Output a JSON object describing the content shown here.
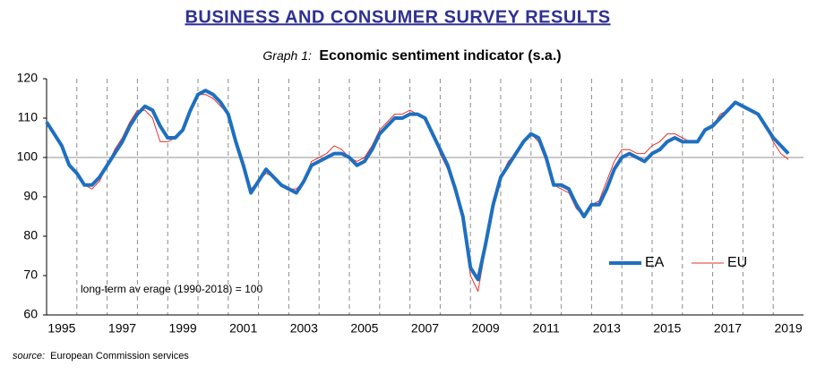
{
  "chart_data": {
    "type": "line",
    "header": "BUSINESS AND CONSUMER SURVEY RESULTS",
    "graph_label": "Graph 1:",
    "title": "Economic sentiment indicator (s.a.)",
    "annotation": "long-term av erage (1990-2018) = 100",
    "source_label": "source:",
    "source": "European Commission services",
    "x": [
      1995,
      1995.25,
      1995.5,
      1995.75,
      1996,
      1996.25,
      1996.5,
      1996.75,
      1997,
      1997.25,
      1997.5,
      1997.75,
      1998,
      1998.25,
      1998.5,
      1998.75,
      1999,
      1999.25,
      1999.5,
      1999.75,
      2000,
      2000.25,
      2000.5,
      2000.75,
      2001,
      2001.25,
      2001.5,
      2001.75,
      2002,
      2002.25,
      2002.5,
      2002.75,
      2003,
      2003.25,
      2003.5,
      2003.75,
      2004,
      2004.25,
      2004.5,
      2004.75,
      2005,
      2005.25,
      2005.5,
      2005.75,
      2006,
      2006.25,
      2006.5,
      2006.75,
      2007,
      2007.25,
      2007.5,
      2007.75,
      2008,
      2008.25,
      2008.5,
      2008.75,
      2009,
      2009.25,
      2009.5,
      2009.75,
      2010,
      2010.25,
      2010.5,
      2010.75,
      2011,
      2011.25,
      2011.5,
      2011.75,
      2012,
      2012.25,
      2012.5,
      2012.75,
      2013,
      2013.25,
      2013.5,
      2013.75,
      2014,
      2014.25,
      2014.5,
      2014.75,
      2015,
      2015.25,
      2015.5,
      2015.75,
      2016,
      2016.25,
      2016.5,
      2016.75,
      2017,
      2017.25,
      2017.5,
      2017.75,
      2018,
      2018.25,
      2018.5,
      2018.75,
      2019,
      2019.25,
      2019.5
    ],
    "series": [
      {
        "name": "EA",
        "color": "#1f6fc0",
        "width": 4,
        "values": [
          109,
          106,
          103,
          98,
          96,
          93,
          93,
          95,
          98,
          101,
          104,
          108,
          111,
          113,
          112,
          108,
          105,
          105,
          107,
          112,
          116,
          117,
          116,
          114,
          111,
          104,
          98,
          91,
          94,
          97,
          95,
          93,
          92,
          91,
          94,
          98,
          99,
          100,
          101,
          101,
          100,
          98,
          99,
          102,
          106,
          108,
          110,
          110,
          111,
          111,
          110,
          106,
          102,
          98,
          92,
          85,
          72,
          69,
          78,
          88,
          95,
          98,
          101,
          104,
          106,
          105,
          100,
          93,
          93,
          92,
          88,
          85,
          88,
          88,
          92,
          97,
          100,
          101,
          100,
          99,
          101,
          102,
          104,
          105,
          104,
          104,
          104,
          107,
          108,
          110,
          112,
          114,
          113,
          112,
          111,
          108,
          105,
          103,
          101
        ]
      },
      {
        "name": "EU",
        "color": "#e8322e",
        "width": 1,
        "values": [
          109,
          106,
          103,
          98,
          96,
          93,
          92,
          94,
          98,
          102,
          105,
          109,
          112,
          112,
          110,
          104,
          104,
          105,
          107,
          112,
          116,
          116,
          115,
          113,
          111,
          103,
          97,
          92,
          94,
          96,
          95,
          93,
          92,
          92,
          94,
          99,
          100,
          101,
          103,
          102,
          100,
          99,
          100,
          103,
          107,
          109,
          111,
          111,
          112,
          111,
          110,
          106,
          101,
          97,
          91,
          84,
          70,
          66,
          77,
          88,
          95,
          99,
          101,
          104,
          106,
          104,
          99,
          93,
          92,
          91,
          87,
          85,
          88,
          89,
          94,
          99,
          102,
          102,
          101,
          101,
          103,
          104,
          106,
          106,
          105,
          104,
          104,
          107,
          108,
          111,
          112,
          114,
          113,
          112,
          111,
          108,
          104,
          101,
          99.5
        ]
      }
    ],
    "xlim": [
      1995,
      2020
    ],
    "xticks": [
      {
        "value": 1995.5,
        "label": "1995"
      },
      {
        "value": 1997.5,
        "label": "1997"
      },
      {
        "value": 1999.5,
        "label": "1999"
      },
      {
        "value": 2001.5,
        "label": "2001"
      },
      {
        "value": 2003.5,
        "label": "2003"
      },
      {
        "value": 2005.5,
        "label": "2005"
      },
      {
        "value": 2007.5,
        "label": "2007"
      },
      {
        "value": 2009.5,
        "label": "2009"
      },
      {
        "value": 2011.5,
        "label": "2011"
      },
      {
        "value": 2013.5,
        "label": "2013"
      },
      {
        "value": 2015.5,
        "label": "2015"
      },
      {
        "value": 2017.5,
        "label": "2017"
      },
      {
        "value": 2019.5,
        "label": "2019"
      }
    ],
    "xgrid": [
      1996,
      1997,
      1998,
      1999,
      2000,
      2001,
      2002,
      2003,
      2004,
      2005,
      2006,
      2007,
      2008,
      2009,
      2010,
      2011,
      2012,
      2013,
      2014,
      2015,
      2016,
      2017,
      2018,
      2019
    ],
    "ylim": [
      60,
      120
    ],
    "yticks": [
      60,
      70,
      80,
      90,
      100,
      110,
      120
    ],
    "hline": 100,
    "legend": "lower right"
  }
}
